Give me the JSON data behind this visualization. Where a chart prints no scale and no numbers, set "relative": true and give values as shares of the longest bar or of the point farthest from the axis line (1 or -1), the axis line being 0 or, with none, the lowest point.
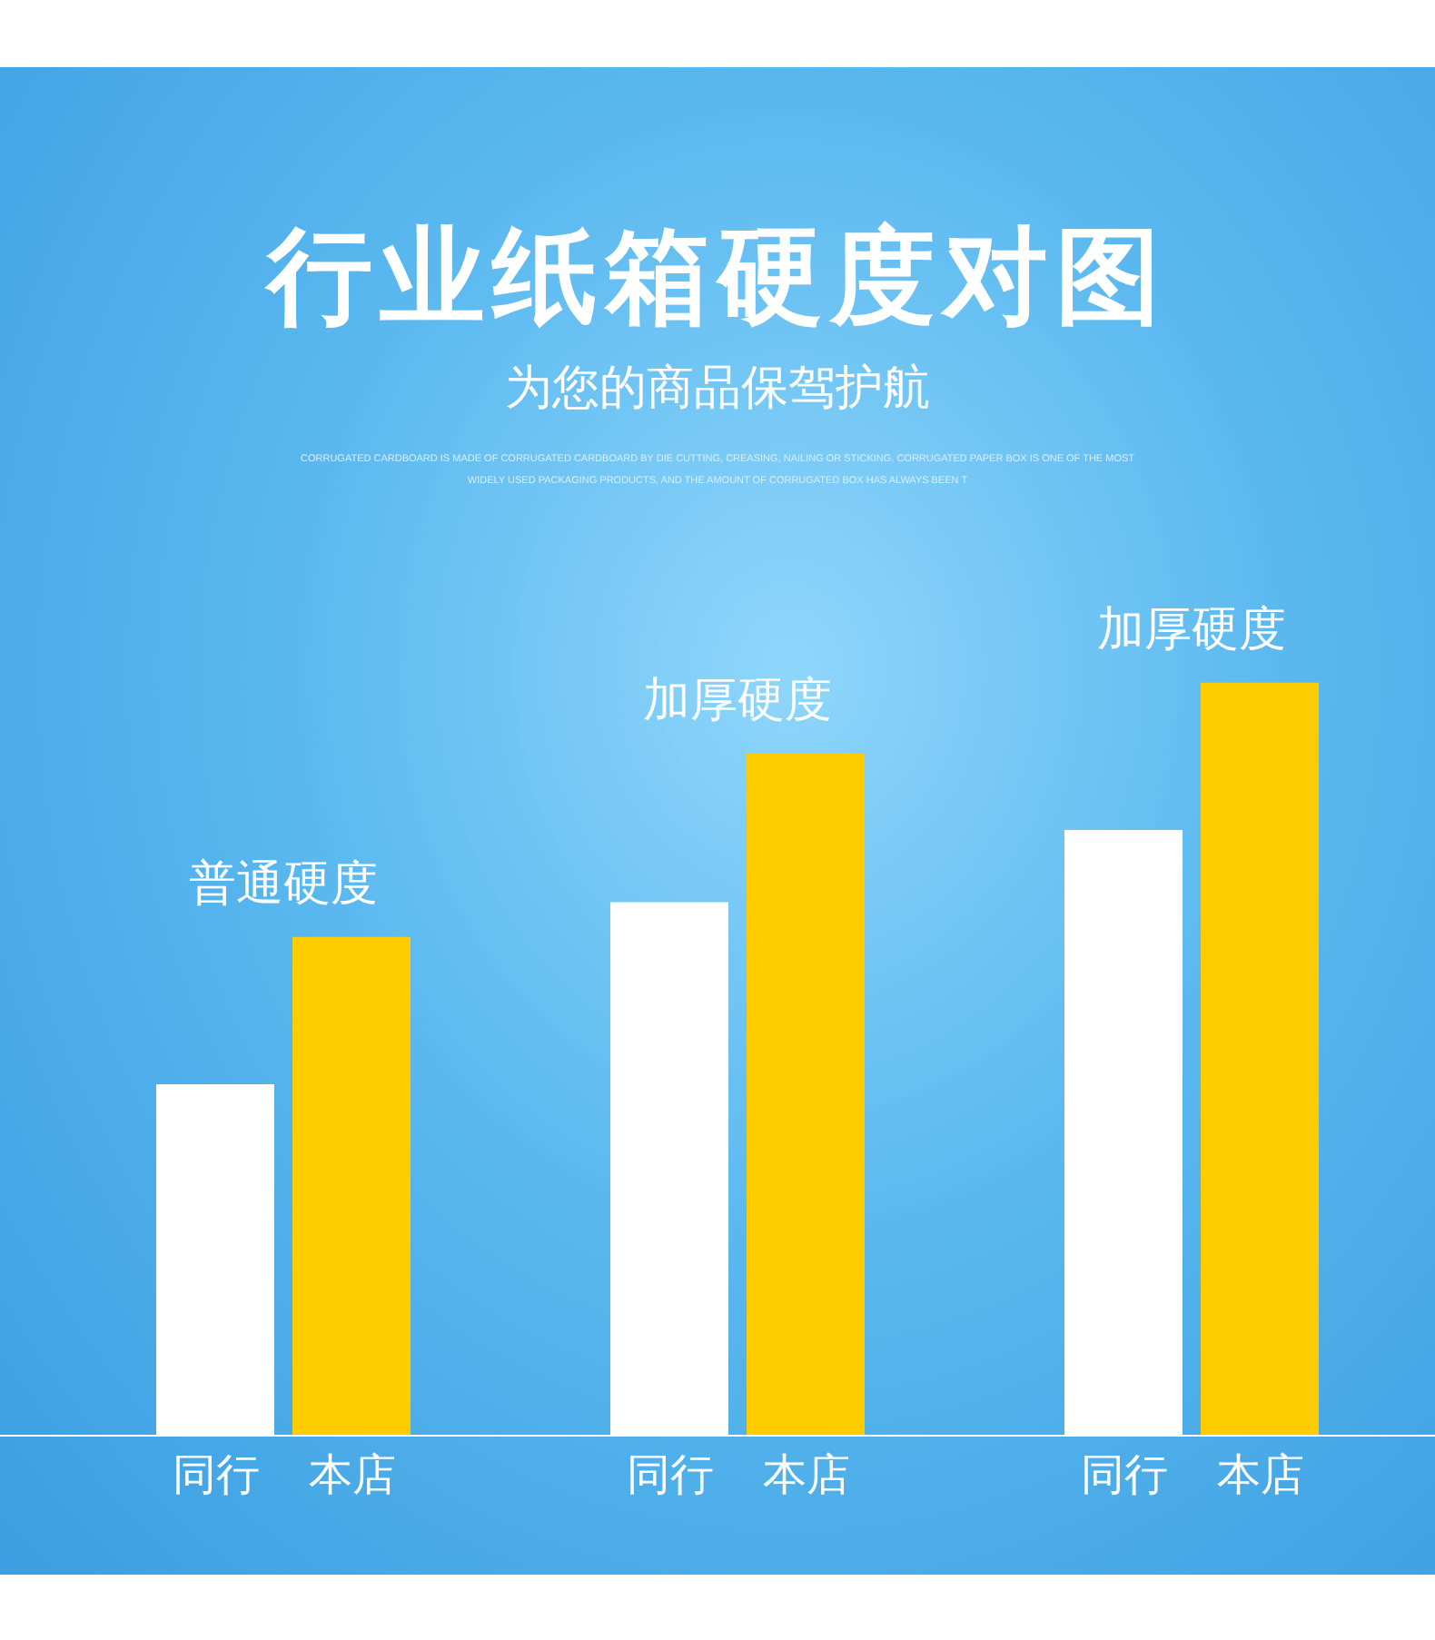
{
  "chart_data": {
    "type": "bar",
    "title": "行业纸箱硬度对图",
    "subtitle": "为您的商品保驾护航",
    "annotations": [
      "CORRUGATED CARDBOARD IS MADE OF CORRUGATED CARDBOARD BY DIE CUTTING, CREASING, NAILING OR STICKING. CORRUGATED PAPER BOX IS ONE OF THE MOST WIDELY USED PACKAGING PRODUCTS, AND THE AMOUNT OF CORRUGATED BOX HAS ALWAYS BEEN T"
    ],
    "categories": [
      "普通硬度",
      "加厚硬度",
      "加厚硬度"
    ],
    "relative": true,
    "legend": false,
    "series": [
      {
        "name": "同行",
        "color": "#ffffff",
        "values": [
          0.466,
          0.708,
          0.804
        ]
      },
      {
        "name": "本店",
        "color": "#ffcc00",
        "values": [
          0.662,
          0.906,
          1
        ]
      }
    ]
  }
}
